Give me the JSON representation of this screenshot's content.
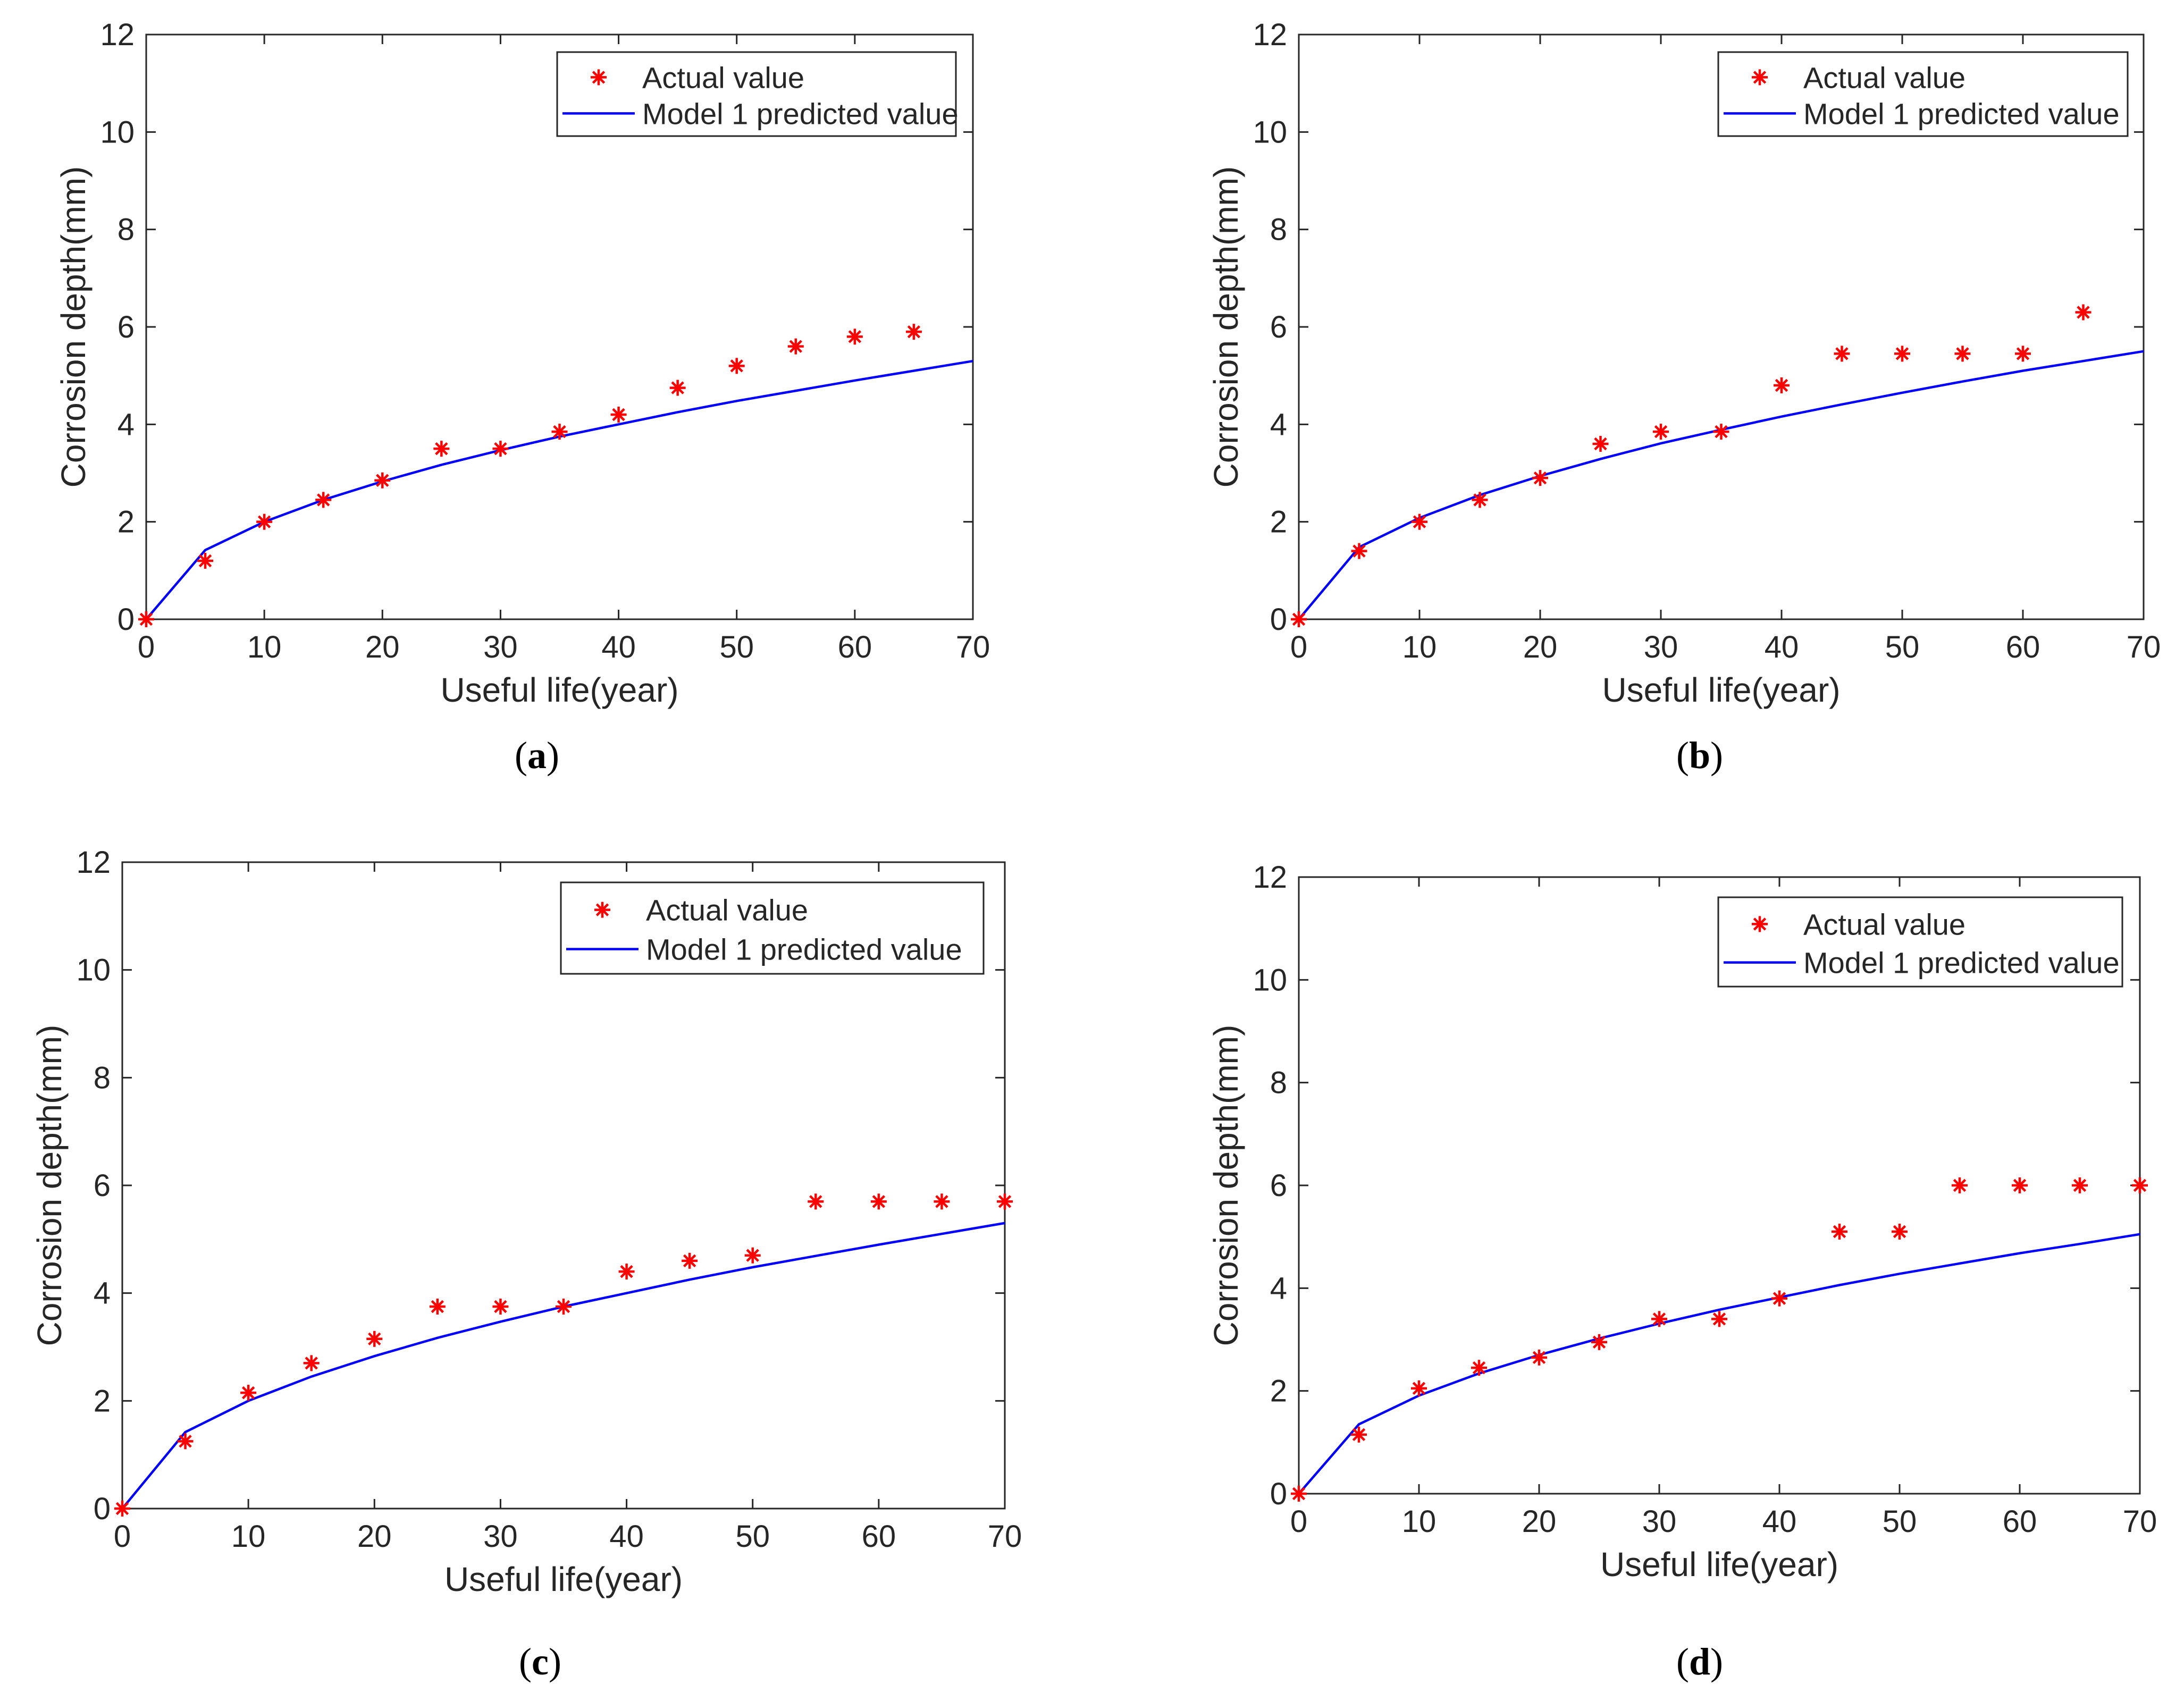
{
  "chart_data": [
    {
      "type": "scatter+line",
      "panel": "(a)",
      "caption_label": "a",
      "xlabel": "Useful life(year)",
      "ylabel": "Corrosion depth(mm)",
      "xlim": [
        0,
        70
      ],
      "ylim": [
        0,
        12
      ],
      "xticks": [
        "0",
        "10",
        "20",
        "30",
        "40",
        "50",
        "60",
        "70"
      ],
      "yticks": [
        "0",
        "2",
        "4",
        "6",
        "8",
        "10",
        "12"
      ],
      "legend": {
        "location": "top-right",
        "entries": [
          "Actual value",
          "Model 1 predicted value"
        ]
      },
      "series": [
        {
          "name": "Actual value",
          "kind": "marker",
          "marker": "asterisk",
          "color": "#ff0000",
          "x": [
            0,
            5,
            10,
            15,
            20,
            25,
            30,
            35,
            40,
            45,
            50,
            55,
            60,
            65
          ],
          "y": [
            0,
            1.2,
            2.0,
            2.45,
            2.85,
            3.5,
            3.5,
            3.85,
            4.2,
            4.75,
            5.2,
            5.6,
            5.8,
            5.9
          ]
        },
        {
          "name": "Model 1 predicted value",
          "kind": "line",
          "color": "#0000ff",
          "x": [
            0,
            5,
            10,
            15,
            20,
            25,
            30,
            35,
            40,
            45,
            50,
            55,
            60,
            65,
            70
          ],
          "y": [
            0,
            1.42,
            2.0,
            2.45,
            2.83,
            3.17,
            3.47,
            3.75,
            4.0,
            4.25,
            4.48,
            4.69,
            4.9,
            5.1,
            5.3
          ]
        }
      ]
    },
    {
      "type": "scatter+line",
      "panel": "(b)",
      "caption_label": "b",
      "xlabel": "Useful life(year)",
      "ylabel": "Corrosion depth(mm)",
      "xlim": [
        0,
        70
      ],
      "ylim": [
        0,
        12
      ],
      "xticks": [
        "0",
        "10",
        "20",
        "30",
        "40",
        "50",
        "60",
        "70"
      ],
      "yticks": [
        "0",
        "2",
        "4",
        "6",
        "8",
        "10",
        "12"
      ],
      "legend": {
        "location": "top-right",
        "entries": [
          "Actual value",
          "Model 1 predicted value"
        ]
      },
      "series": [
        {
          "name": "Actual value",
          "kind": "marker",
          "marker": "asterisk",
          "color": "#ff0000",
          "x": [
            0,
            5,
            10,
            15,
            20,
            25,
            30,
            35,
            40,
            45,
            50,
            55,
            60,
            65
          ],
          "y": [
            0,
            1.4,
            2.0,
            2.45,
            2.9,
            3.6,
            3.85,
            3.85,
            4.8,
            5.45,
            5.45,
            5.45,
            5.45,
            6.3
          ]
        },
        {
          "name": "Model 1 predicted value",
          "kind": "line",
          "color": "#0000ff",
          "x": [
            0,
            5,
            10,
            15,
            20,
            25,
            30,
            35,
            40,
            45,
            50,
            55,
            60,
            65,
            70
          ],
          "y": [
            0,
            1.48,
            2.08,
            2.55,
            2.94,
            3.29,
            3.61,
            3.89,
            4.16,
            4.41,
            4.65,
            4.88,
            5.1,
            5.3,
            5.5
          ]
        }
      ]
    },
    {
      "type": "scatter+line",
      "panel": "(c)",
      "caption_label": "c",
      "xlabel": "Useful life(year)",
      "ylabel": "Corrosion depth(mm)",
      "xlim": [
        0,
        70
      ],
      "ylim": [
        0,
        12
      ],
      "xticks": [
        "0",
        "10",
        "20",
        "30",
        "40",
        "50",
        "60",
        "70"
      ],
      "yticks": [
        "0",
        "2",
        "4",
        "6",
        "8",
        "10",
        "12"
      ],
      "legend": {
        "location": "top-right",
        "entries": [
          "Actual value",
          "Model 1 predicted value"
        ]
      },
      "series": [
        {
          "name": "Actual value",
          "kind": "marker",
          "marker": "asterisk",
          "color": "#ff0000",
          "x": [
            0,
            5,
            10,
            15,
            20,
            25,
            30,
            35,
            40,
            45,
            50,
            55,
            60,
            65,
            70
          ],
          "y": [
            0,
            1.25,
            2.15,
            2.7,
            3.15,
            3.75,
            3.75,
            3.75,
            4.4,
            4.6,
            4.7,
            5.7,
            5.7,
            5.7,
            5.7
          ]
        },
        {
          "name": "Model 1 predicted value",
          "kind": "line",
          "color": "#0000ff",
          "x": [
            0,
            5,
            10,
            15,
            20,
            25,
            30,
            35,
            40,
            45,
            50,
            55,
            60,
            65,
            70
          ],
          "y": [
            0,
            1.42,
            2.0,
            2.45,
            2.83,
            3.17,
            3.47,
            3.75,
            4.0,
            4.25,
            4.48,
            4.69,
            4.9,
            5.1,
            5.3
          ]
        }
      ]
    },
    {
      "type": "scatter+line",
      "panel": "(d)",
      "caption_label": "d",
      "xlabel": "Useful life(year)",
      "ylabel": "Corrosion depth(mm)",
      "xlim": [
        0,
        70
      ],
      "ylim": [
        0,
        12
      ],
      "xticks": [
        "0",
        "10",
        "20",
        "30",
        "40",
        "50",
        "60",
        "70"
      ],
      "yticks": [
        "0",
        "2",
        "4",
        "6",
        "8",
        "10",
        "12"
      ],
      "legend": {
        "location": "top-right",
        "entries": [
          "Actual value",
          "Model 1 predicted value"
        ]
      },
      "series": [
        {
          "name": "Actual value",
          "kind": "marker",
          "marker": "asterisk",
          "color": "#ff0000",
          "x": [
            0,
            5,
            10,
            15,
            20,
            25,
            30,
            35,
            40,
            45,
            50,
            55,
            60,
            65,
            70
          ],
          "y": [
            0,
            1.15,
            2.05,
            2.45,
            2.65,
            2.95,
            3.4,
            3.4,
            3.8,
            5.1,
            5.1,
            6.0,
            6.0,
            6.0,
            6.0
          ]
        },
        {
          "name": "Model 1 predicted value",
          "kind": "line",
          "color": "#0000ff",
          "x": [
            0,
            5,
            10,
            15,
            20,
            25,
            30,
            35,
            40,
            45,
            50,
            55,
            60,
            65,
            70
          ],
          "y": [
            0,
            1.35,
            1.91,
            2.34,
            2.7,
            3.02,
            3.31,
            3.58,
            3.82,
            4.06,
            4.28,
            4.48,
            4.68,
            4.86,
            5.05
          ]
        }
      ]
    }
  ]
}
